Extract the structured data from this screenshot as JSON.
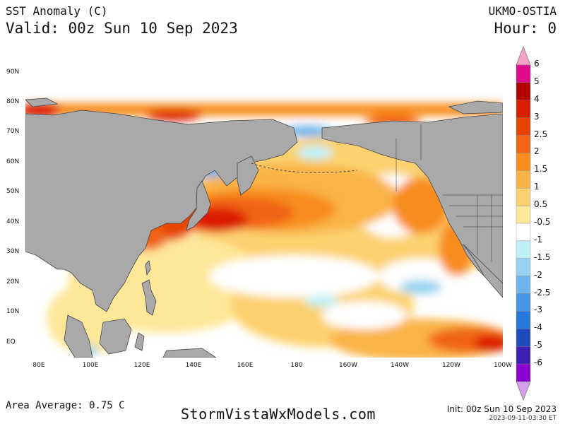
{
  "header": {
    "title": "SST Anomaly (C)",
    "valid": "Valid: 00z Sun 10 Sep 2023",
    "source": "UKMO-OSTIA",
    "hour": "Hour: 0"
  },
  "map": {
    "lat_labels": [
      "90N",
      "80N",
      "70N",
      "60N",
      "50N",
      "40N",
      "30N",
      "20N",
      "10N",
      "EQ"
    ],
    "lon_labels": [
      "80E",
      "100E",
      "120E",
      "140E",
      "160E",
      "180",
      "160W",
      "140W",
      "120W",
      "100W"
    ],
    "region": "North Pacific"
  },
  "colorbar": {
    "labels": [
      "6",
      "5",
      "4",
      "3",
      "2.5",
      "2",
      "1.5",
      "1",
      "0.5",
      "-0.5",
      "-1",
      "-1.5",
      "-2",
      "-2.5",
      "-3",
      "-4",
      "-5",
      "-6"
    ],
    "colors": [
      "#e0088c",
      "#b40000",
      "#dc1e00",
      "#e84400",
      "#f06414",
      "#f88c1e",
      "#fab446",
      "#fcd270",
      "#ffe79a",
      "#ffffff",
      "#bef0f8",
      "#96d2f0",
      "#6eb4ec",
      "#4696e6",
      "#2878dc",
      "#1e4bbe",
      "#3c1eb4",
      "#8c00d2"
    ],
    "top_arrow_color": "#f4a0c8",
    "bottom_arrow_color": "#d4a0ec"
  },
  "footer": {
    "area_average": "Area Average: 0.75 C",
    "site": "StormVistaWxModels.com",
    "init": "Init: 00z Sun 10 Sep 2023",
    "timestamp": "2023-09-11-03:30 ET"
  }
}
